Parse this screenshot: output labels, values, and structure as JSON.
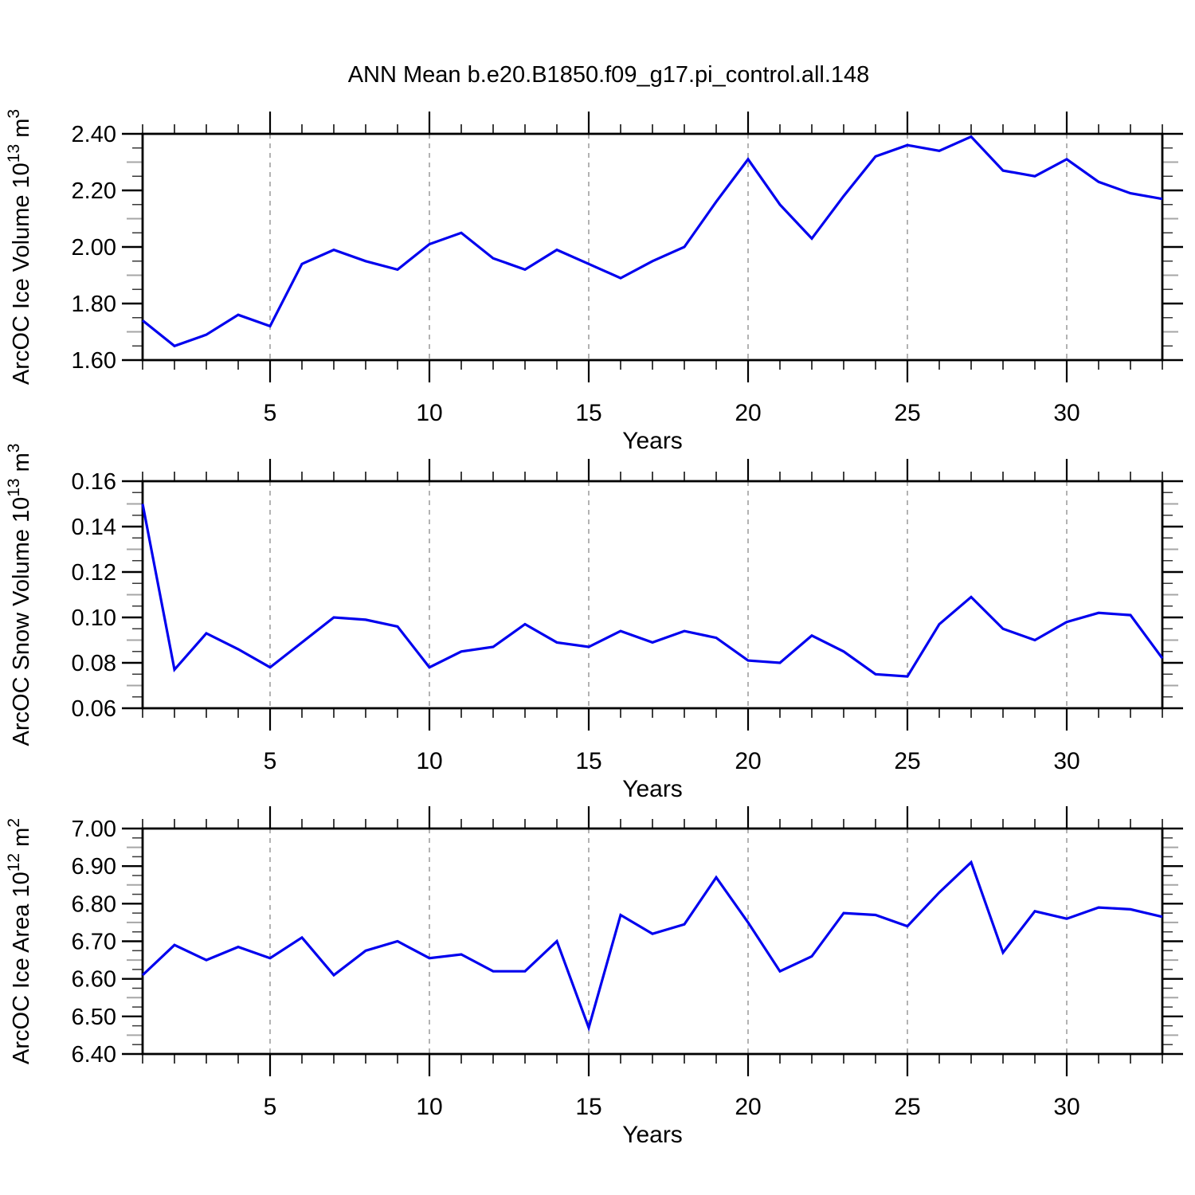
{
  "title": "ANN Mean b.e20.B1850.f09_g17.pi_control.all.148",
  "xlabel": "Years",
  "x_ticks": [
    5,
    10,
    15,
    20,
    25,
    30
  ],
  "x_years": [
    1,
    2,
    3,
    4,
    5,
    6,
    7,
    8,
    9,
    10,
    11,
    12,
    13,
    14,
    15,
    16,
    17,
    18,
    19,
    20,
    21,
    22,
    23,
    24,
    25,
    26,
    27,
    28,
    29,
    30,
    31,
    32,
    33
  ],
  "line_color": "#0000ee",
  "grid_color": "#808080",
  "chart_data": [
    {
      "type": "line",
      "name": "arcoc-ice-volume",
      "ylabel": "ArcOC Ice Volume 10¹³ m³",
      "ylabel_parts": [
        {
          "t": "ArcOC Ice Volume 10",
          "s": 0
        },
        {
          "t": "13",
          "s": 1
        },
        {
          "t": " m",
          "s": 0
        },
        {
          "t": "3",
          "s": 1
        }
      ],
      "ylim": [
        1.6,
        2.4
      ],
      "y_major_step": 0.2,
      "ytick_labels": [
        "1.60",
        "1.80",
        "2.00",
        "2.20",
        "2.40"
      ],
      "xlabel": "Years",
      "grid": "vertical-dashed",
      "values": [
        1.74,
        1.65,
        1.69,
        1.76,
        1.72,
        1.94,
        1.99,
        1.95,
        1.92,
        2.01,
        2.05,
        1.96,
        1.92,
        1.99,
        1.94,
        1.89,
        1.95,
        2.0,
        2.16,
        2.31,
        2.15,
        2.03,
        2.18,
        2.32,
        2.36,
        2.34,
        2.39,
        2.27,
        2.25,
        2.31,
        2.23,
        2.19,
        2.17
      ]
    },
    {
      "type": "line",
      "name": "arcoc-snow-volume",
      "ylabel": "ArcOC Snow Volume 10¹³ m³",
      "ylabel_parts": [
        {
          "t": "ArcOC Snow Volume 10",
          "s": 0
        },
        {
          "t": "13",
          "s": 1
        },
        {
          "t": " m",
          "s": 0
        },
        {
          "t": "3",
          "s": 1
        }
      ],
      "ylim": [
        0.06,
        0.16
      ],
      "y_major_step": 0.02,
      "ytick_labels": [
        "0.06",
        "0.08",
        "0.10",
        "0.12",
        "0.14",
        "0.16"
      ],
      "xlabel": "Years",
      "grid": "vertical-dashed",
      "values": [
        0.15,
        0.077,
        0.093,
        0.086,
        0.078,
        0.089,
        0.1,
        0.099,
        0.096,
        0.078,
        0.085,
        0.087,
        0.097,
        0.089,
        0.087,
        0.094,
        0.089,
        0.094,
        0.091,
        0.081,
        0.08,
        0.092,
        0.085,
        0.075,
        0.074,
        0.097,
        0.109,
        0.095,
        0.09,
        0.098,
        0.102,
        0.101,
        0.082
      ]
    },
    {
      "type": "line",
      "name": "arcoc-ice-area",
      "ylabel": "ArcOC Ice Area 10¹² m²",
      "ylabel_parts": [
        {
          "t": "ArcOC Ice Area 10",
          "s": 0
        },
        {
          "t": "12",
          "s": 1
        },
        {
          "t": " m",
          "s": 0
        },
        {
          "t": "2",
          "s": 1
        }
      ],
      "ylim": [
        6.4,
        7.0
      ],
      "y_major_step": 0.1,
      "ytick_labels": [
        "6.40",
        "6.50",
        "6.60",
        "6.70",
        "6.80",
        "6.90",
        "7.00"
      ],
      "xlabel": "Years",
      "grid": "vertical-dashed",
      "values": [
        6.61,
        6.69,
        6.65,
        6.685,
        6.655,
        6.71,
        6.61,
        6.675,
        6.7,
        6.655,
        6.665,
        6.62,
        6.62,
        6.7,
        6.47,
        6.77,
        6.72,
        6.745,
        6.87,
        6.75,
        6.62,
        6.66,
        6.775,
        6.77,
        6.74,
        6.83,
        6.91,
        6.67,
        6.78,
        6.76,
        6.79,
        6.785,
        6.765
      ]
    }
  ]
}
